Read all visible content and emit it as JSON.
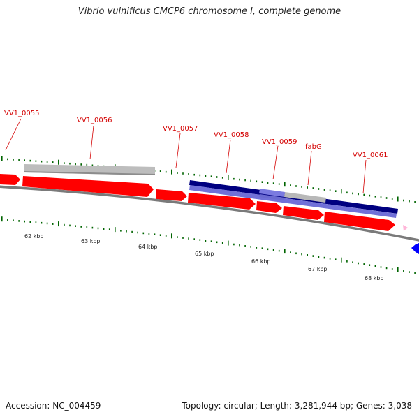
{
  "title": "Vibrio vulnificus CMCP6 chromosome I, complete genome",
  "footer": {
    "accession": "Accession: NC_004459",
    "summary": "Topology: circular; Length: 3,281,944 bp; Genes: 3,038"
  },
  "colors": {
    "cds": "#ff0000",
    "match_grey": "#c8c8c8",
    "match_dark": "#000080",
    "match_light": "#7070d8",
    "backbone": "#888888",
    "tick": "#006400",
    "pink_feature": "#ffb6d9",
    "blue_feature": "#0000ff",
    "label": "#d40000"
  },
  "gene_labels": [
    "VV1_0055",
    "VV1_0056",
    "VV1_0057",
    "VV1_0058",
    "VV1_0059",
    "fabG",
    "VV1_0061"
  ],
  "scale_labels": [
    "62 kbp",
    "63 kbp",
    "64 kbp",
    "65 kbp",
    "66 kbp",
    "67 kbp",
    "68 kbp"
  ]
}
